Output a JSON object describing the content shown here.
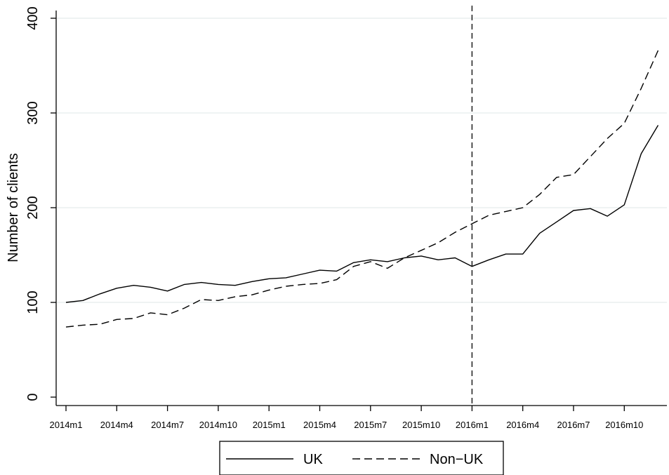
{
  "chart_data": {
    "type": "line",
    "title": "",
    "xlabel": "",
    "ylabel": "Number of clients",
    "ylim": [
      0,
      400
    ],
    "yticks": [
      "0",
      "100",
      "200",
      "300",
      "400"
    ],
    "grid": "horizontal",
    "x_tick_labels": [
      "2014m1",
      "2014m4",
      "2014m7",
      "2014m10",
      "2015m1",
      "2015m4",
      "2015m7",
      "2015m10",
      "2016m1",
      "2016m4",
      "2016m7",
      "2016m10"
    ],
    "x": [
      "2014m1",
      "2014m2",
      "2014m3",
      "2014m4",
      "2014m5",
      "2014m6",
      "2014m7",
      "2014m8",
      "2014m9",
      "2014m10",
      "2014m11",
      "2014m12",
      "2015m1",
      "2015m2",
      "2015m3",
      "2015m4",
      "2015m5",
      "2015m6",
      "2015m7",
      "2015m8",
      "2015m9",
      "2015m10",
      "2015m11",
      "2015m12",
      "2016m1",
      "2016m2",
      "2016m3",
      "2016m4",
      "2016m5",
      "2016m6",
      "2016m7",
      "2016m8",
      "2016m9",
      "2016m10",
      "2016m11",
      "2016m12"
    ],
    "vline": "2016m1",
    "series": [
      {
        "name": "UK",
        "style": "solid",
        "values": [
          100,
          102,
          109,
          115,
          118,
          116,
          112,
          119,
          121,
          119,
          118,
          122,
          125,
          126,
          130,
          134,
          133,
          142,
          145,
          143,
          147,
          149,
          145,
          147,
          138,
          145,
          151,
          151,
          173,
          185,
          197,
          199,
          191,
          203,
          257,
          287
        ]
      },
      {
        "name": "Non−UK",
        "style": "dashed",
        "values": [
          74,
          76,
          77,
          82,
          83,
          89,
          87,
          94,
          103,
          102,
          106,
          108,
          113,
          117,
          119,
          120,
          124,
          138,
          143,
          136,
          147,
          155,
          163,
          174,
          183,
          192,
          196,
          200,
          214,
          232,
          235,
          254,
          273,
          289,
          326,
          366
        ]
      }
    ],
    "legend_position": "bottom-center",
    "colors": {
      "line": "#000000",
      "grid": "#e5ecec",
      "axis": "#000000"
    }
  }
}
